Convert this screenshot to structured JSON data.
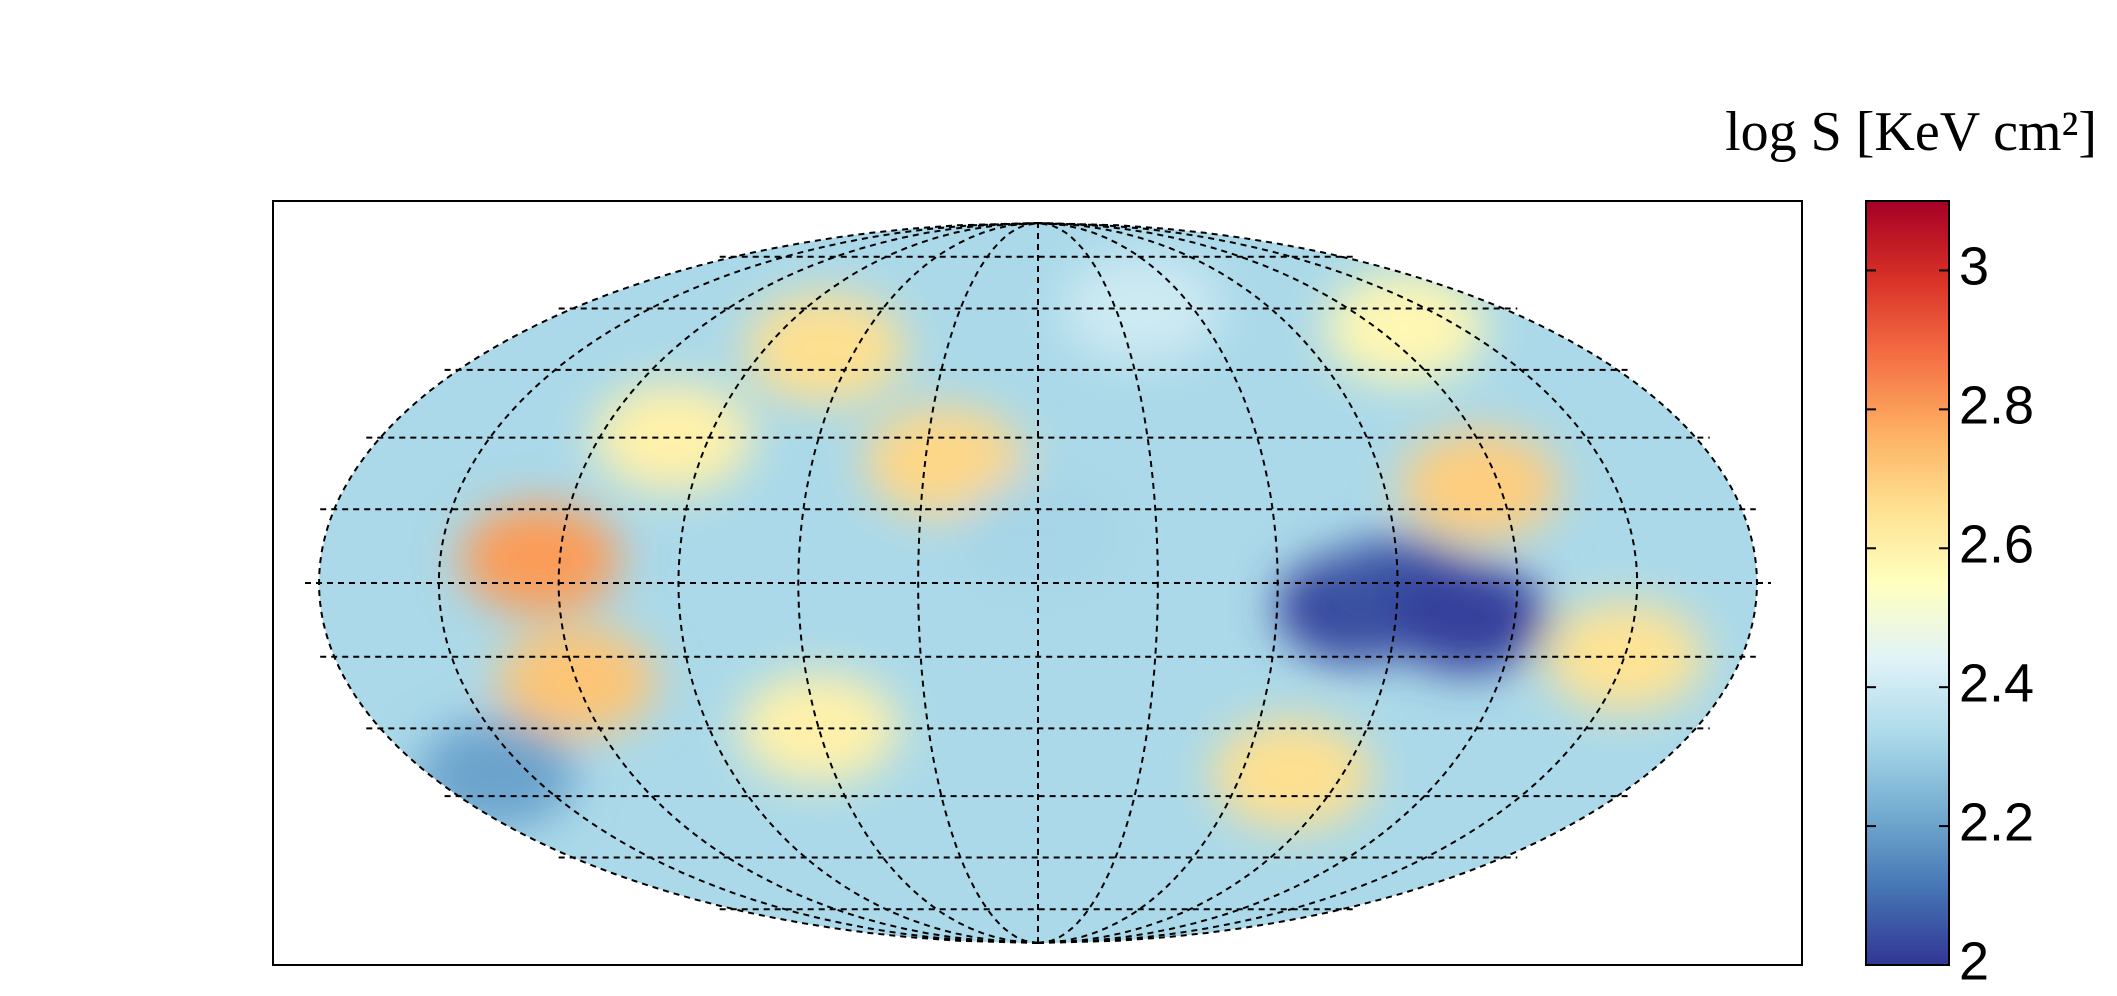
{
  "chart_data": {
    "type": "mollweide",
    "colorbar_label": "log S [KeV cm²]",
    "colormap": [
      "#313695",
      "#4575b4",
      "#74add1",
      "#abd9e9",
      "#e0f3f8",
      "#ffffbf",
      "#fee090",
      "#fdae61",
      "#f46d43",
      "#d73027",
      "#a50026"
    ],
    "ylim": [
      2,
      3.1
    ],
    "yticks": [
      2,
      2.2,
      2.4,
      2.6,
      2.8,
      3
    ],
    "lon": [
      -125,
      -120,
      -70,
      -25,
      -60,
      -160,
      0,
      80,
      90,
      108,
      115,
      150,
      75,
      40,
      -100,
      130
    ],
    "lat": [
      5,
      -20,
      50,
      25,
      -30,
      -40,
      10,
      -5,
      -2,
      -7,
      20,
      -15,
      -40,
      60,
      30,
      55
    ],
    "values": [
      2.8,
      2.72,
      2.66,
      2.68,
      2.6,
      2.2,
      2.32,
      2.02,
      2.05,
      2.02,
      2.7,
      2.65,
      2.66,
      2.4,
      2.6,
      2.58
    ]
  }
}
